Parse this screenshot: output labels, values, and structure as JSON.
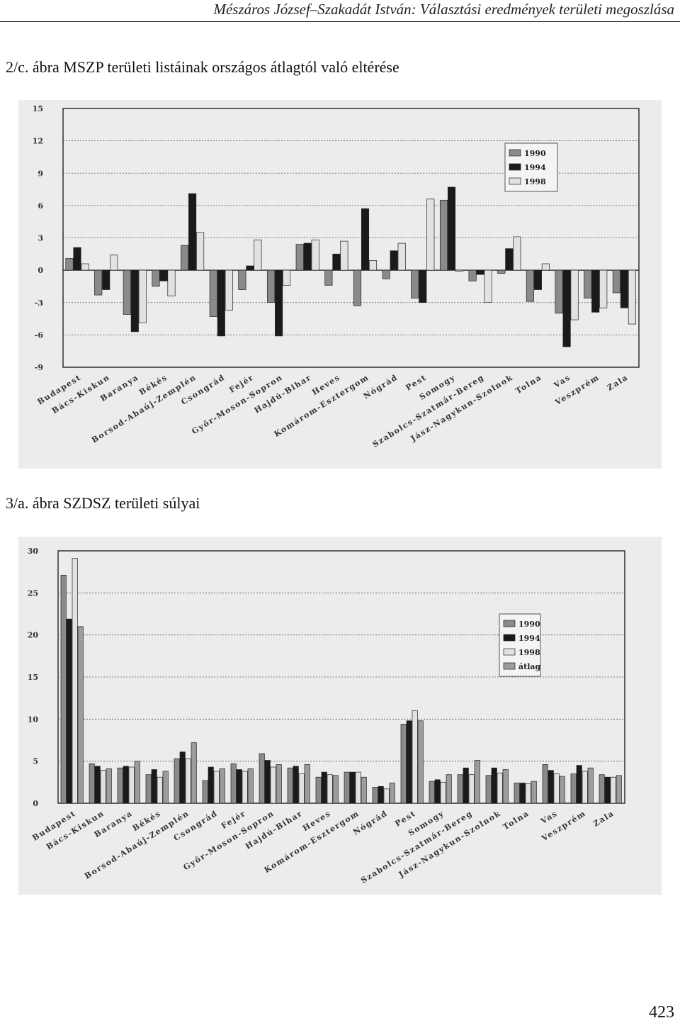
{
  "header": {
    "running_title": "Mészáros József–Szakadát István: Választási eredmények területi megoszlása"
  },
  "figure1": {
    "caption": "2/c. ábra MSZP területi listáinak országos átlagtól való eltérése"
  },
  "figure2": {
    "caption": "3/a. ábra SZDSZ területi súlyai"
  },
  "page_number": "423",
  "colors": {
    "s1990": "#8a8a8a",
    "s1994": "#1a1a1a",
    "s1998": "#e2e2e2",
    "satlag": "#9c9c9c",
    "background": "#ececec"
  },
  "chart_data": [
    {
      "type": "bar",
      "categories": [
        "Budapest",
        "Bács-Kiskun",
        "Baranya",
        "Békés",
        "Borsod-Abaúj-Zemplén",
        "Csongrád",
        "Fejér",
        "Győr-Moson-Sopron",
        "Hajdú-Bihar",
        "Heves",
        "Komárom-Esztergom",
        "Nógrád",
        "Pest",
        "Somogy",
        "Szabolcs-Szatmár-Bereg",
        "Jász-Nagykun-Szolnok",
        "Tolna",
        "Vas",
        "Veszprém",
        "Zala"
      ],
      "series": [
        {
          "name": "1990",
          "values": [
            1.1,
            -2.3,
            -4.1,
            -1.5,
            2.3,
            -4.3,
            -1.8,
            -3.0,
            2.4,
            -1.4,
            -3.3,
            -0.8,
            -2.6,
            6.5,
            -1.0,
            -0.3,
            -2.9,
            -4.0,
            -2.6,
            -2.1
          ]
        },
        {
          "name": "1994",
          "values": [
            2.1,
            -1.8,
            -5.7,
            -1.0,
            7.1,
            -6.1,
            0.4,
            -6.1,
            2.5,
            1.5,
            5.7,
            1.8,
            -3.0,
            7.7,
            -0.4,
            2.0,
            -1.8,
            -7.1,
            -3.9,
            -3.5
          ]
        },
        {
          "name": "1998",
          "values": [
            0.6,
            1.4,
            -4.9,
            -2.4,
            3.5,
            -3.7,
            2.8,
            -1.4,
            2.8,
            2.7,
            0.9,
            2.5,
            6.6,
            -0.1,
            -3.0,
            3.1,
            0.6,
            -4.6,
            -3.5,
            -5.0
          ]
        }
      ],
      "ylim": [
        -9,
        15
      ],
      "yticks": [
        15,
        12,
        9,
        6,
        3,
        0,
        -3,
        -6,
        -9
      ],
      "grid": true,
      "legend": "top-right"
    },
    {
      "type": "bar",
      "categories": [
        "Budapest",
        "Bács-Kiskun",
        "Baranya",
        "Békés",
        "Borsod-Abaúj-Zemplén",
        "Csongrád",
        "Fejér",
        "Győr-Moson-Sopron",
        "Hajdú-Bihar",
        "Heves",
        "Komárom-Esztergom",
        "Nógrád",
        "Pest",
        "Somogy",
        "Szabolcs-Szatmár-Bereg",
        "Jász-Nagykun-Szolnok",
        "Tolna",
        "Vas",
        "Veszprém",
        "Zala"
      ],
      "series": [
        {
          "name": "1990",
          "values": [
            27.1,
            4.7,
            4.2,
            3.4,
            5.3,
            2.7,
            4.7,
            5.9,
            4.2,
            3.1,
            3.7,
            1.9,
            9.4,
            2.6,
            3.4,
            3.3,
            2.4,
            4.6,
            3.5,
            3.4
          ]
        },
        {
          "name": "1994",
          "values": [
            21.9,
            4.4,
            4.4,
            4.0,
            6.1,
            4.3,
            4.0,
            5.1,
            4.4,
            3.7,
            3.7,
            2.0,
            9.8,
            2.8,
            4.2,
            4.2,
            2.4,
            3.9,
            4.5,
            3.1
          ]
        },
        {
          "name": "1998",
          "values": [
            29.1,
            3.9,
            4.3,
            3.1,
            5.3,
            3.8,
            3.8,
            4.3,
            3.5,
            3.4,
            3.7,
            1.7,
            11.0,
            2.5,
            3.4,
            3.6,
            2.3,
            3.5,
            3.8,
            3.1
          ]
        },
        {
          "name": "átlag",
          "values": [
            21.0,
            4.1,
            5.0,
            3.8,
            7.2,
            4.1,
            4.1,
            4.6,
            4.6,
            3.3,
            3.1,
            2.4,
            9.8,
            3.4,
            5.1,
            4.0,
            2.6,
            3.2,
            4.2,
            3.3
          ]
        }
      ],
      "ylim": [
        0,
        30
      ],
      "yticks": [
        30,
        25,
        20,
        15,
        10,
        5,
        0
      ],
      "grid": true,
      "legend": "right"
    }
  ]
}
